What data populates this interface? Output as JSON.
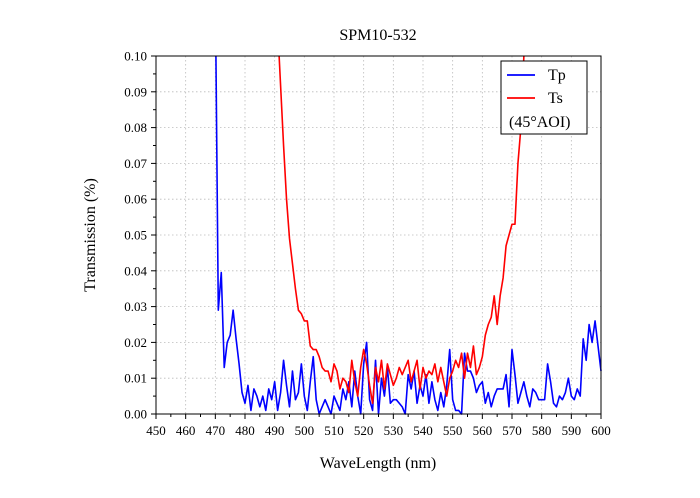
{
  "chart_data": {
    "type": "line",
    "title": "SPM10-532",
    "xlabel": "WaveLength (nm)",
    "ylabel": "Transmission (%)",
    "xlim": [
      450,
      600
    ],
    "ylim": [
      0,
      0.1
    ],
    "xticks": [
      450,
      460,
      470,
      480,
      490,
      500,
      510,
      520,
      530,
      540,
      550,
      560,
      570,
      580,
      590,
      600
    ],
    "yticks": [
      0.0,
      0.01,
      0.02,
      0.03,
      0.04,
      0.05,
      0.06,
      0.07,
      0.08,
      0.09,
      0.1
    ],
    "ytick_labels": [
      "0.00",
      "0.01",
      "0.02",
      "0.03",
      "0.04",
      "0.05",
      "0.06",
      "0.07",
      "0.08",
      "0.09",
      "0.10"
    ],
    "grid": true,
    "legend_position": "top-right",
    "legend_note": "(45°AOI)",
    "series": [
      {
        "name": "Tp",
        "color": "#0000ff",
        "x": [
          470.2,
          471,
          472,
          473,
          474,
          475,
          476,
          477,
          478,
          479,
          480,
          481,
          482,
          483,
          484,
          485,
          486,
          487,
          488,
          489,
          490,
          491,
          492,
          493,
          494,
          495,
          496,
          497,
          498,
          499,
          500,
          501,
          502,
          503,
          504,
          505,
          506,
          507,
          508,
          509,
          510,
          511,
          512,
          513,
          514,
          515,
          516,
          517,
          518,
          519,
          520,
          521,
          522,
          523,
          524,
          525,
          526,
          527,
          528,
          529,
          530,
          531,
          532,
          533,
          534,
          535,
          536,
          537,
          538,
          539,
          540,
          541,
          542,
          543,
          544,
          545,
          546,
          547,
          548,
          549,
          550,
          551,
          552,
          553,
          554,
          555,
          556,
          557,
          558,
          559,
          560,
          561,
          562,
          563,
          564,
          565,
          566,
          567,
          568,
          569,
          570,
          571,
          572,
          573,
          574,
          575,
          576,
          577,
          578,
          579,
          580,
          581,
          582,
          583,
          584,
          585,
          586,
          587,
          588,
          589,
          590,
          591,
          592,
          593,
          594,
          595,
          596,
          597,
          598,
          599,
          600
        ],
        "y": [
          0.1,
          0.029,
          0.0395,
          0.013,
          0.02,
          0.022,
          0.029,
          0.021,
          0.014,
          0.006,
          0.003,
          0.008,
          0.001,
          0.007,
          0.005,
          0.002,
          0.005,
          0.001,
          0.007,
          0.004,
          0.009,
          0.001,
          0.006,
          0.015,
          0.008,
          0.002,
          0.012,
          0.004,
          0.006,
          0.014,
          0.005,
          0.001,
          0.009,
          0.016,
          0.004,
          0.0,
          0.002,
          0.004,
          0.002,
          0.0,
          0.005,
          0.003,
          0.001,
          0.007,
          0.004,
          0.009,
          0.002,
          0.012,
          0.005,
          0.0,
          0.014,
          0.02,
          0.004,
          0.001,
          0.015,
          0.0,
          0.01,
          0.005,
          0.013,
          0.003,
          0.004,
          0.004,
          0.003,
          0.002,
          0.0,
          0.011,
          0.007,
          0.012,
          0.003,
          0.008,
          0.005,
          0.011,
          0.003,
          0.009,
          0.004,
          0.001,
          0.006,
          0.002,
          0.008,
          0.018,
          0.004,
          0.001,
          0.001,
          0.0,
          0.017,
          0.012,
          0.012,
          0.01,
          0.006,
          0.008,
          0.009,
          0.003,
          0.006,
          0.002,
          0.005,
          0.007,
          0.007,
          0.007,
          0.011,
          0.002,
          0.018,
          0.011,
          0.003,
          0.006,
          0.009,
          0.005,
          0.002,
          0.007,
          0.006,
          0.004,
          0.004,
          0.004,
          0.014,
          0.009,
          0.003,
          0.002,
          0.005,
          0.004,
          0.006,
          0.01,
          0.005,
          0.004,
          0.007,
          0.005,
          0.021,
          0.015,
          0.025,
          0.02,
          0.026,
          0.019,
          0.012
        ]
      },
      {
        "name": "Ts",
        "color": "#ff0000",
        "x": [
          491.5,
          493,
          494,
          495,
          496,
          497,
          498,
          499,
          500,
          501,
          502,
          503,
          504,
          505,
          506,
          507,
          508,
          509,
          510,
          511,
          512,
          513,
          514,
          515,
          516,
          517,
          518,
          519,
          520,
          521,
          522,
          523,
          524,
          525,
          526,
          527,
          528,
          529,
          530,
          531,
          532,
          533,
          534,
          535,
          536,
          537,
          538,
          539,
          540,
          541,
          542,
          543,
          544,
          545,
          546,
          547,
          548,
          549,
          550,
          551,
          552,
          553,
          554,
          555,
          556,
          557,
          558,
          559,
          560,
          561,
          562,
          563,
          564,
          565,
          566,
          567,
          568,
          569,
          570,
          571,
          572,
          573,
          574
        ],
        "y": [
          0.1,
          0.075,
          0.06,
          0.049,
          0.042,
          0.035,
          0.029,
          0.028,
          0.026,
          0.026,
          0.019,
          0.018,
          0.018,
          0.016,
          0.013,
          0.012,
          0.012,
          0.009,
          0.014,
          0.012,
          0.007,
          0.01,
          0.009,
          0.006,
          0.015,
          0.009,
          0.005,
          0.013,
          0.018,
          0.014,
          0.008,
          0.003,
          0.013,
          0.009,
          0.015,
          0.007,
          0.014,
          0.011,
          0.008,
          0.01,
          0.013,
          0.011,
          0.013,
          0.015,
          0.009,
          0.012,
          0.015,
          0.007,
          0.013,
          0.01,
          0.012,
          0.011,
          0.014,
          0.009,
          0.013,
          0.009,
          0.005,
          0.01,
          0.012,
          0.015,
          0.013,
          0.017,
          0.01,
          0.017,
          0.013,
          0.019,
          0.011,
          0.013,
          0.016,
          0.022,
          0.025,
          0.027,
          0.033,
          0.025,
          0.033,
          0.038,
          0.047,
          0.05,
          0.053,
          0.053,
          0.07,
          0.08,
          0.1
        ]
      }
    ]
  }
}
